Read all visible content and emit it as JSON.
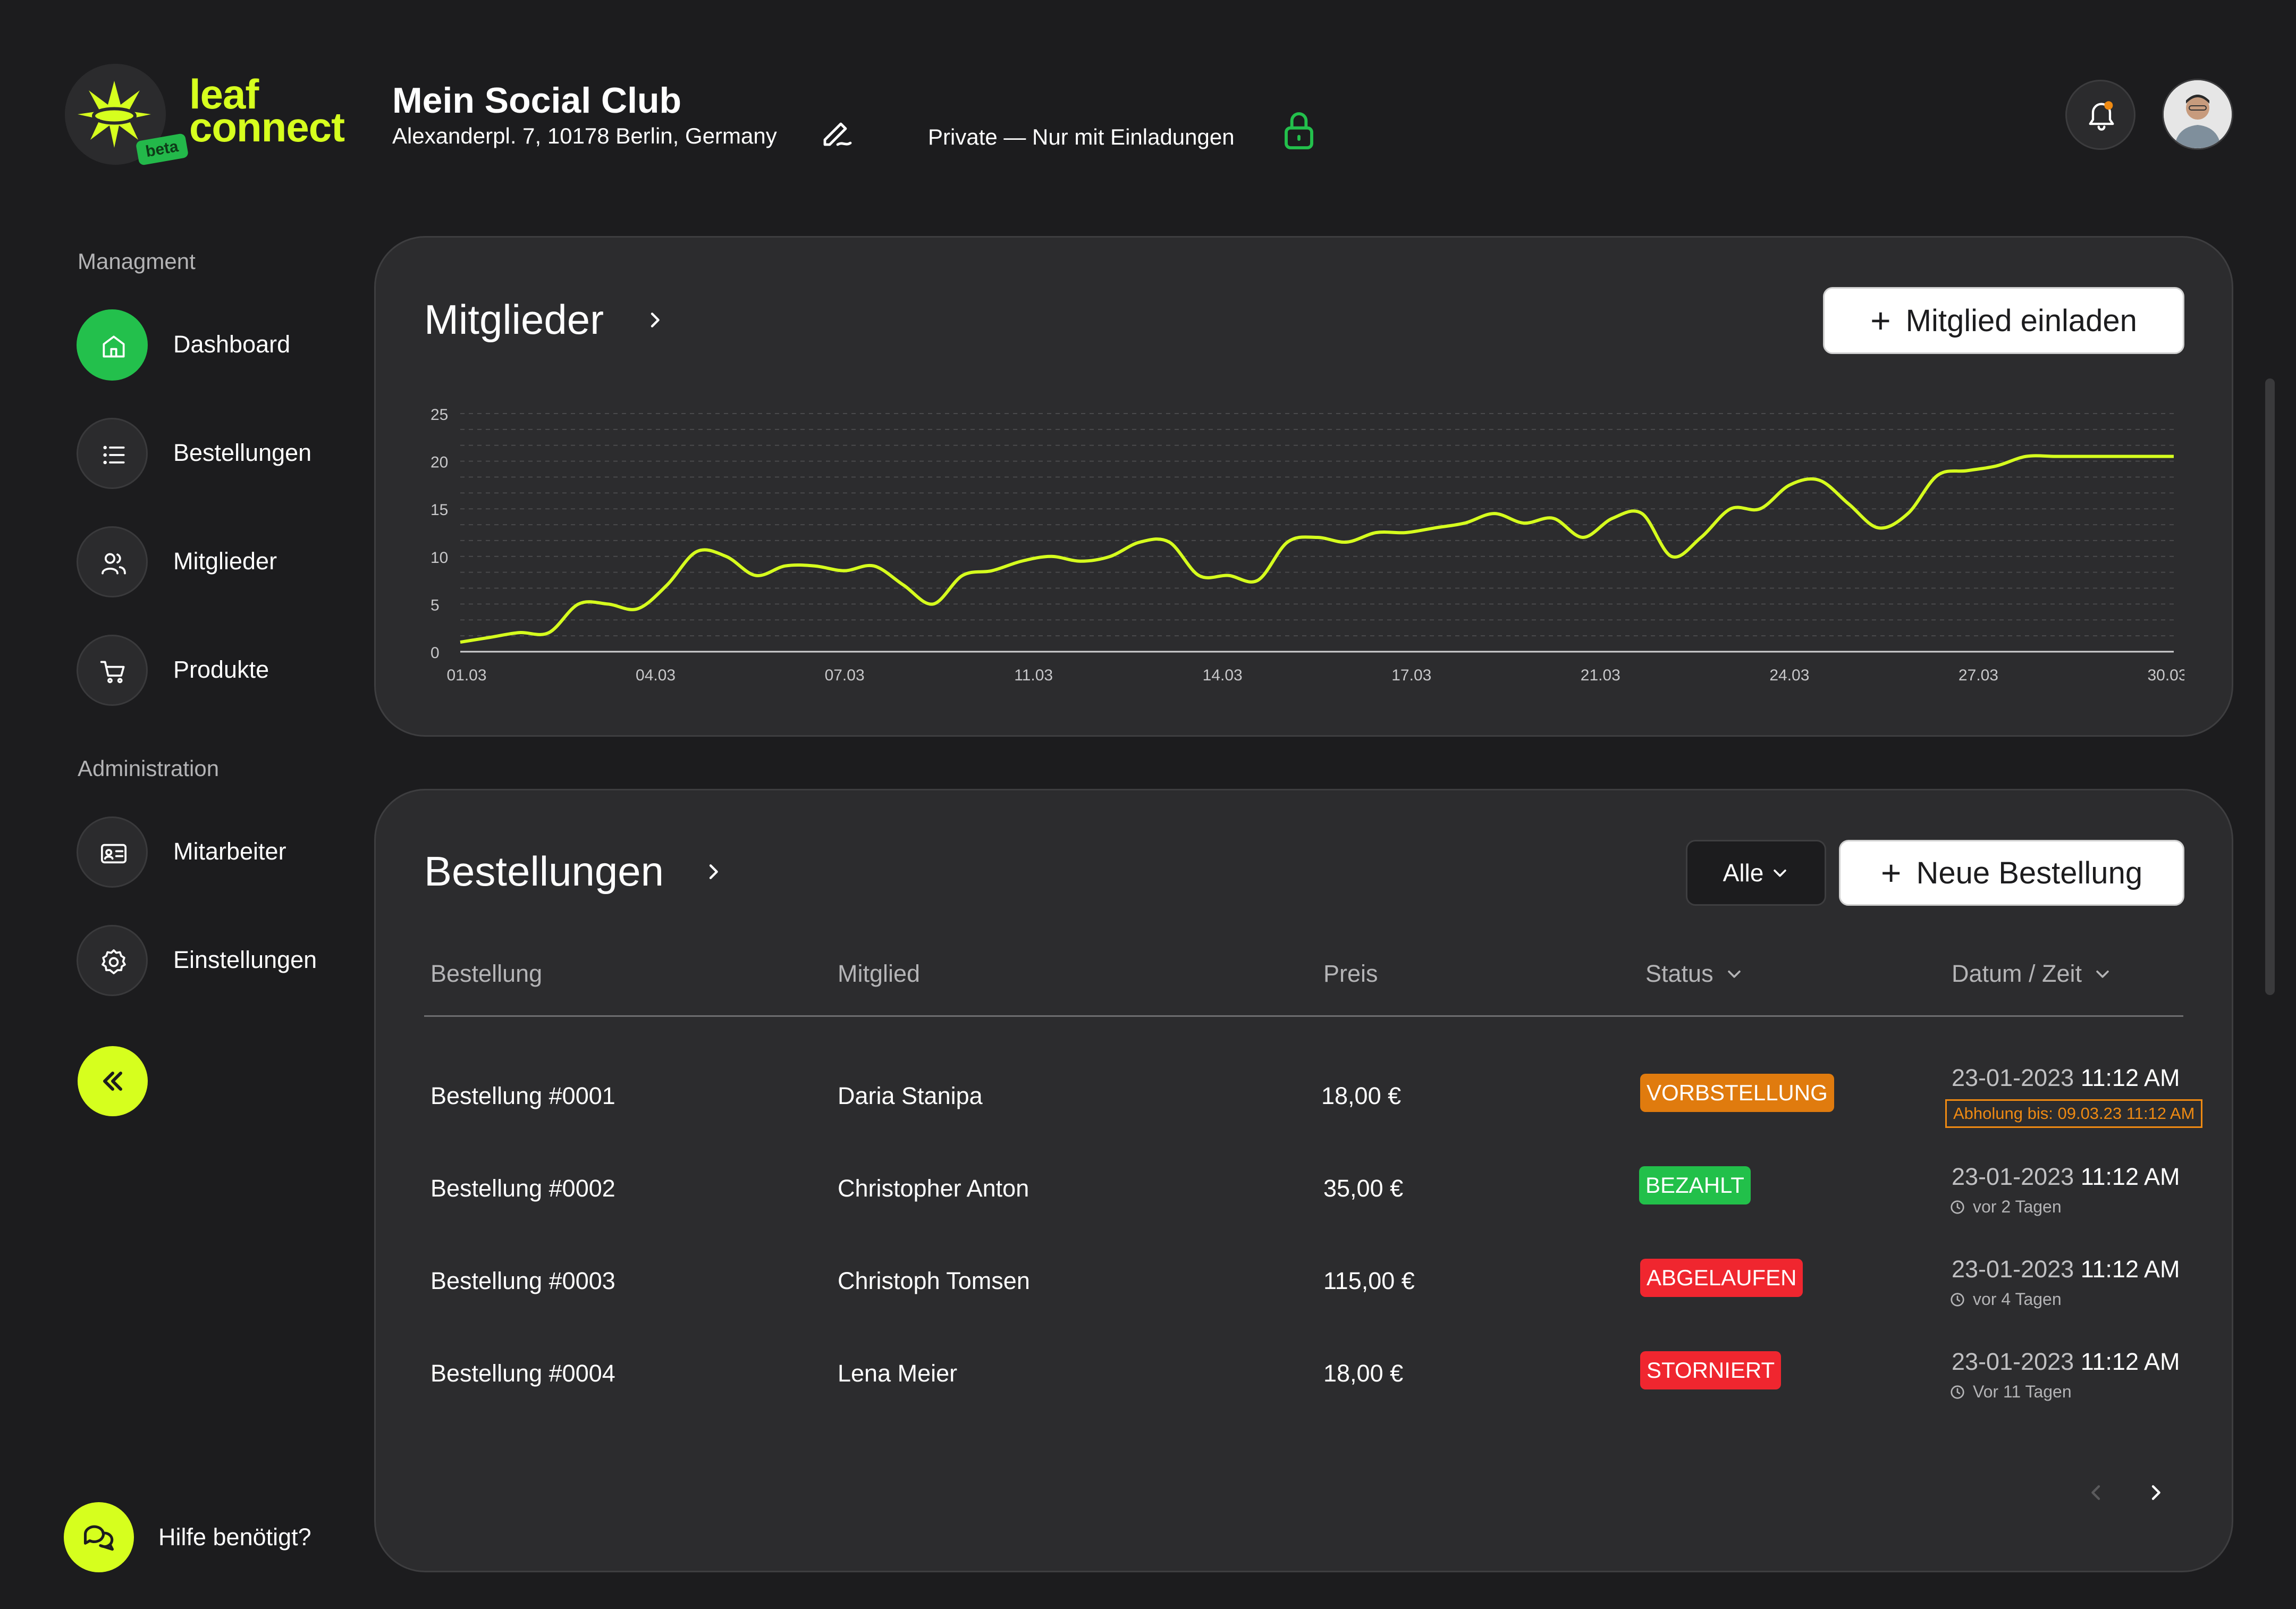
{
  "brand": {
    "logo_line1": "leaf",
    "logo_line2": "connect",
    "beta": "beta",
    "accent": "#d6ff1e",
    "green": "#23c04c"
  },
  "header": {
    "club_name": "Mein Social Club",
    "address": "Alexanderpl. 7, 10178 Berlin, Germany",
    "privacy": "Private — Nur mit Einladungen",
    "icons": [
      "edit-icon",
      "lock-icon",
      "bell-icon",
      "avatar"
    ]
  },
  "sidebar": {
    "section_management": "Managment",
    "section_admin": "Administration",
    "items": [
      {
        "label": "Dashboard",
        "icon": "home-icon",
        "active": true
      },
      {
        "label": "Bestellungen",
        "icon": "list-icon"
      },
      {
        "label": "Mitglieder",
        "icon": "users-icon"
      },
      {
        "label": "Produkte",
        "icon": "cart-icon"
      },
      {
        "label": "Mitarbeiter",
        "icon": "id-card-icon"
      },
      {
        "label": "Einstellungen",
        "icon": "gear-icon"
      }
    ],
    "help": "Hilfe benötigt?"
  },
  "members_card": {
    "title": "Mitglieder",
    "invite_label": "Mitglied einladen"
  },
  "chart_data": {
    "type": "line",
    "title": "",
    "xlabel": "",
    "ylabel": "",
    "ylim": [
      0,
      25
    ],
    "yticks": [
      "0",
      "5",
      "10",
      "15",
      "20",
      "25"
    ],
    "xticks": [
      "01.03",
      "04.03",
      "07.03",
      "11.03",
      "14.03",
      "17.03",
      "21.03",
      "24.03",
      "27.03",
      "30.03"
    ],
    "grid": true,
    "color": "#d6ff1e",
    "x": [
      0,
      0.5,
      1,
      1.5,
      2,
      2.5,
      3,
      3.5,
      4,
      4.5,
      5,
      5.5,
      6,
      6.5,
      7,
      7.5,
      8,
      8.5,
      9,
      9.5,
      10,
      10.5,
      11,
      11.5,
      12,
      12.5,
      13,
      13.5,
      14,
      14.5,
      15,
      15.5,
      16,
      16.5,
      17,
      17.5,
      18,
      18.5,
      19,
      19.5,
      20,
      20.5,
      21,
      21.5,
      22,
      22.5,
      23,
      23.5,
      24,
      24.5,
      25,
      25.5,
      26,
      26.5,
      27,
      27.5,
      28,
      28.5,
      29
    ],
    "y": [
      1,
      1.5,
      2,
      2,
      5,
      5,
      4.5,
      7,
      10.5,
      10,
      8,
      9,
      9,
      8.5,
      9,
      7,
      5,
      8,
      8.5,
      9.5,
      10,
      9.5,
      10,
      11.5,
      11.5,
      8,
      8,
      7.5,
      11.5,
      12,
      11.5,
      12.5,
      12.5,
      13,
      13.5,
      14.5,
      13.5,
      14,
      12,
      14,
      14.5,
      10,
      12,
      15,
      15,
      17.5,
      18,
      15.5,
      13,
      14.5,
      18.5,
      19,
      19.5,
      20.5,
      20.5,
      20.5,
      20.5,
      20.5,
      20.5
    ]
  },
  "orders_card": {
    "title": "Bestellungen",
    "filter_label": "Alle",
    "new_label": "Neue Bestellung",
    "columns": [
      "Bestellung",
      "Mitglied",
      "Preis",
      "Status",
      "Datum / Zeit"
    ],
    "rows": [
      {
        "order": "Bestellung #0001",
        "member": "Daria Stanipa",
        "price": "18,00 €",
        "status": "VORBSTELLUNG",
        "status_color": "#e07b0e",
        "date": "23-01-2023",
        "time": "11:12 AM",
        "note": "Abholung bis: 09.03.23 11:12 AM"
      },
      {
        "order": "Bestellung #0002",
        "member": "Christopher Anton",
        "price": "35,00 €",
        "status": "BEZAHLT",
        "status_color": "#22c04a",
        "date": "23-01-2023",
        "time": "11:12 AM",
        "note": "vor 2 Tagen"
      },
      {
        "order": "Bestellung #0003",
        "member": "Christoph Tomsen",
        "price": "115,00 €",
        "status": "ABGELAUFEN",
        "status_color": "#f0262f",
        "date": "23-01-2023",
        "time": "11:12 AM",
        "note": "vor 4 Tagen"
      },
      {
        "order": "Bestellung #0004",
        "member": "Lena Meier",
        "price": "18,00 €",
        "status": "STORNIERT",
        "status_color": "#f0262f",
        "date": "23-01-2023",
        "time": "11:12 AM",
        "note": "Vor 11 Tagen"
      }
    ]
  }
}
